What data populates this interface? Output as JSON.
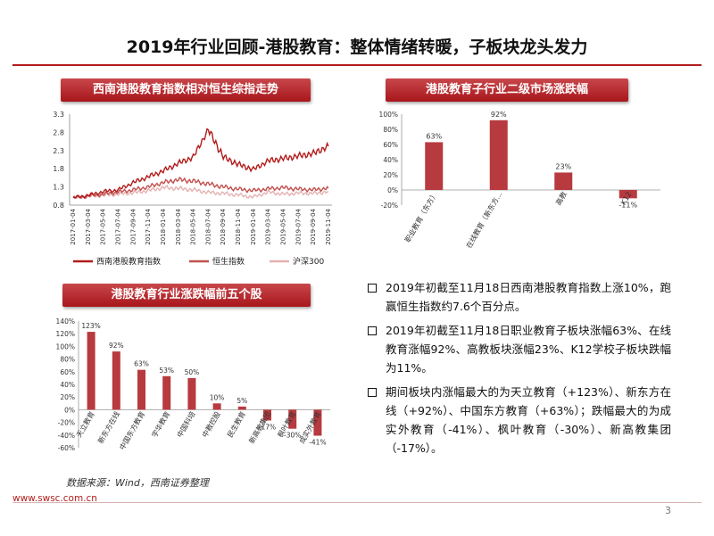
{
  "page": {
    "title": "2019年行业回顾-港股教育：整体情绪转暖，子板块龙头发力",
    "source": "数据来源：Wind，西南证券整理",
    "url": "www.swsc.com.cn",
    "page_number": "3"
  },
  "colors": {
    "accent": "#b31b1b",
    "bar": "#b73a3f"
  },
  "panels": {
    "line": "西南港股教育指数相对恒生综指走势",
    "sub": "港股教育子行业二级市场涨跌幅",
    "top5": "港股教育行业涨跌幅前五个股"
  },
  "bullets": [
    "2019年初截至11月18日西南港股教育指数上涨10%，跑赢恒生指数约7.6个百分点。",
    "2019年初截至11月18日职业教育子板块涨幅63%、在线教育涨幅92%、高教板块涨幅23%、K12学校子板块跌幅为11%。",
    "期间板块内涨幅最大的为天立教育（+123%）、新东方在线（+92%）、中国东方教育（+63%）；跌幅最大的为成实外教育（-41%）、枫叶教育（-30%）、新高教集团（-17%）。"
  ],
  "chart_data": [
    {
      "type": "line",
      "ylim": [
        0.8,
        3.3
      ],
      "y_ticks": [
        "3.3",
        "2.8",
        "2.3",
        "1.8",
        "1.3",
        "0.8"
      ],
      "categories": [
        "2017-01-04",
        "2017-03-04",
        "2017-05-04",
        "2017-07-04",
        "2017-09-04",
        "2017-11-04",
        "2018-01-04",
        "2018-03-04",
        "2018-05-04",
        "2018-07-04",
        "2018-09-04",
        "2018-11-04",
        "2019-01-04",
        "2019-03-04",
        "2019-05-04",
        "2019-07-04",
        "2019-09-04",
        "2019-11-04"
      ],
      "series": [
        {
          "name": "西南港股教育指数",
          "color": "#b31b1b",
          "values": [
            1.0,
            1.07,
            1.17,
            1.22,
            1.42,
            1.58,
            1.74,
            1.95,
            2.12,
            2.88,
            2.12,
            1.92,
            1.78,
            2.02,
            2.08,
            2.15,
            2.22,
            2.42
          ]
        },
        {
          "name": "恒生指数",
          "color": "#c0504d",
          "values": [
            1.0,
            1.05,
            1.1,
            1.16,
            1.22,
            1.3,
            1.42,
            1.5,
            1.46,
            1.38,
            1.3,
            1.24,
            1.2,
            1.25,
            1.28,
            1.24,
            1.22,
            1.27
          ]
        },
        {
          "name": "沪深300",
          "color": "#e6b1b2",
          "values": [
            1.0,
            1.04,
            1.07,
            1.1,
            1.14,
            1.2,
            1.28,
            1.26,
            1.22,
            1.15,
            1.12,
            1.08,
            1.02,
            1.16,
            1.1,
            1.13,
            1.12,
            1.17
          ]
        }
      ]
    },
    {
      "type": "bar",
      "ylim": [
        -20,
        100
      ],
      "y_ticks": [
        "100%",
        "80%",
        "60%",
        "40%",
        "20%",
        "0%",
        "-20%"
      ],
      "categories": [
        "职业教育（东方）",
        "在线教育（新东方...",
        "高教",
        "K12"
      ],
      "values": [
        63,
        92,
        23,
        -11
      ],
      "value_labels": [
        "63%",
        "92%",
        "23%",
        "-11%"
      ]
    },
    {
      "type": "bar",
      "ylim": [
        -60,
        140
      ],
      "y_ticks": [
        "140%",
        "120%",
        "100%",
        "80%",
        "60%",
        "40%",
        "20%",
        "0%",
        "-20%",
        "-40%",
        "-60%"
      ],
      "categories": [
        "天立教育",
        "新东方在线",
        "中国东方教育",
        "宇华教育",
        "中国科培",
        "中教控股",
        "民生教育",
        "新高教集团",
        "枫叶教育",
        "成实外教育"
      ],
      "values": [
        123,
        92,
        63,
        53,
        50,
        10,
        5,
        -17,
        -30,
        -41
      ],
      "value_labels": [
        "123%",
        "92%",
        "63%",
        "53%",
        "50%",
        "10%",
        "5%",
        "-17%",
        "-30%",
        "-41%"
      ]
    }
  ]
}
